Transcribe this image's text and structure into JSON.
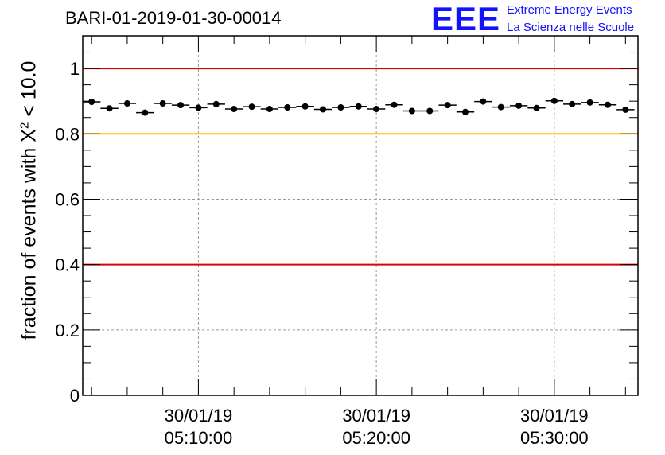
{
  "title": "BARI-01-2019-01-30-00014",
  "logo": {
    "mark": "EEE",
    "line1": "Extreme Energy Events",
    "line2": "La Scienza nelle Scuole"
  },
  "colors": {
    "red_line": "#dd0000",
    "yellow_line": "#ffc000",
    "grid": "#999999",
    "logo_blue": "#1212ff"
  },
  "chart_data": {
    "type": "scatter",
    "title": "BARI-01-2019-01-30-00014",
    "xlabel": "",
    "ylabel": "fraction of events with χ² < 10.0",
    "ylabel_parts": {
      "pre": "fraction of events with X",
      "sup": "2",
      "post": " < 10.0"
    },
    "ylim": [
      0,
      1.1
    ],
    "xlim_minutes": [
      3.5,
      34.7
    ],
    "x_unit": "minutes after 05:00:00 on 30/01/19",
    "yticks": [
      0,
      0.2,
      0.4,
      0.6,
      0.8,
      1
    ],
    "ytick_labels": [
      "0",
      "0.2",
      "0.4",
      "0.6",
      "0.8",
      "1"
    ],
    "xticks_minutes": [
      10,
      20,
      30
    ],
    "xtick_labels": [
      {
        "date": "30/01/19",
        "time": "05:10:00"
      },
      {
        "date": "30/01/19",
        "time": "05:20:00"
      },
      {
        "date": "30/01/19",
        "time": "05:30:00"
      }
    ],
    "grid": true,
    "reference_lines": [
      {
        "y": 1.0,
        "color": "#dd0000"
      },
      {
        "y": 0.8,
        "color": "#ffc000"
      },
      {
        "y": 0.4,
        "color": "#dd0000"
      }
    ],
    "bin_width_minutes": 1,
    "series": [
      {
        "name": "fraction",
        "x": [
          4,
          5,
          6,
          7,
          8,
          9,
          10,
          11,
          12,
          13,
          14,
          15,
          16,
          17,
          18,
          19,
          20,
          21,
          22,
          23,
          24,
          25,
          26,
          27,
          28,
          29,
          30,
          31,
          32,
          33,
          34
        ],
        "values": [
          0.898,
          0.878,
          0.893,
          0.865,
          0.893,
          0.888,
          0.88,
          0.891,
          0.876,
          0.883,
          0.876,
          0.881,
          0.884,
          0.875,
          0.881,
          0.884,
          0.876,
          0.889,
          0.87,
          0.87,
          0.888,
          0.867,
          0.899,
          0.882,
          0.886,
          0.879,
          0.901,
          0.891,
          0.896,
          0.889,
          0.874
        ]
      }
    ]
  }
}
